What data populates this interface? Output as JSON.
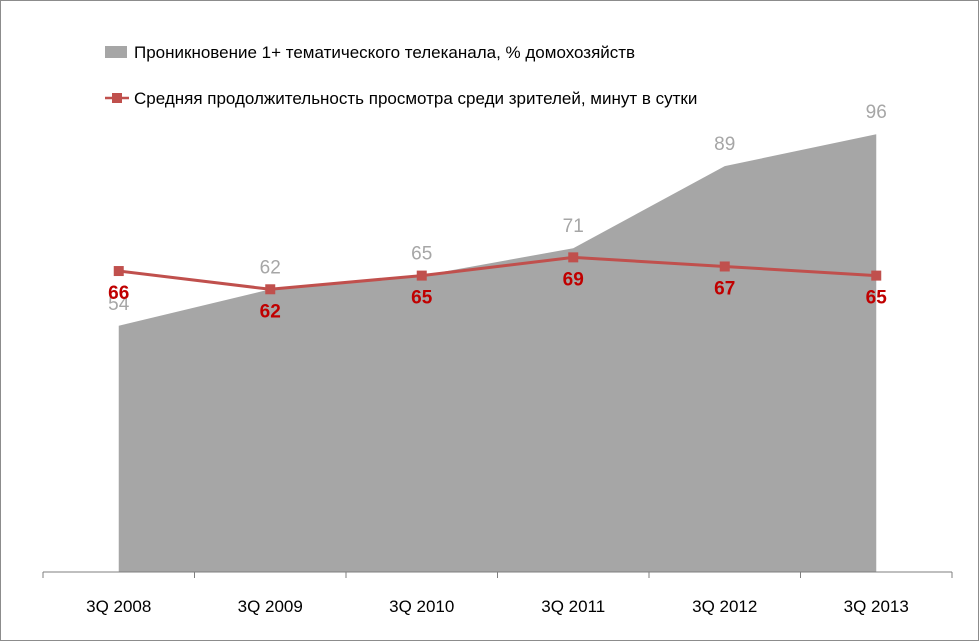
{
  "chart_data": {
    "type": "area+line",
    "categories": [
      "3Q 2008",
      "3Q 2009",
      "3Q 2010",
      "3Q 2011",
      "3Q 2012",
      "3Q 2013"
    ],
    "series": [
      {
        "name": "Проникновение 1+ тематического телеканала, % домохозяйств",
        "type": "area",
        "color": "#a6a6a6",
        "values": [
          54,
          62,
          65,
          71,
          89,
          96
        ]
      },
      {
        "name": "Средняя продолжительность просмотра среди зрителей, минут в сутки",
        "type": "line",
        "color": "#c0504d",
        "label_color": "#c00000",
        "marker": "square",
        "values": [
          66,
          62,
          65,
          69,
          67,
          65
        ]
      }
    ],
    "ylim": [
      0,
      100
    ],
    "grid": false,
    "legend_position": "top-left"
  }
}
